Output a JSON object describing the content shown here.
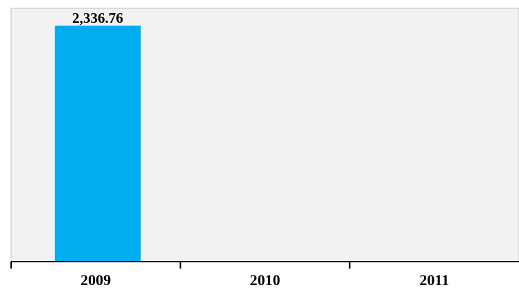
{
  "chart_data": {
    "type": "bar",
    "categories": [
      "2009",
      "2010",
      "2011"
    ],
    "values": [
      2336.76,
      null,
      null
    ],
    "data_labels": [
      "2,336.76",
      "",
      ""
    ],
    "title": "",
    "xlabel": "",
    "ylabel": "",
    "ylim": [
      0,
      2336.76
    ],
    "grid": false,
    "legend": "none",
    "colors": {
      "bar": "#00aeef",
      "plot_background": "#f2f2f2",
      "axis": "#000000",
      "frame": "#bfbfbf"
    }
  }
}
